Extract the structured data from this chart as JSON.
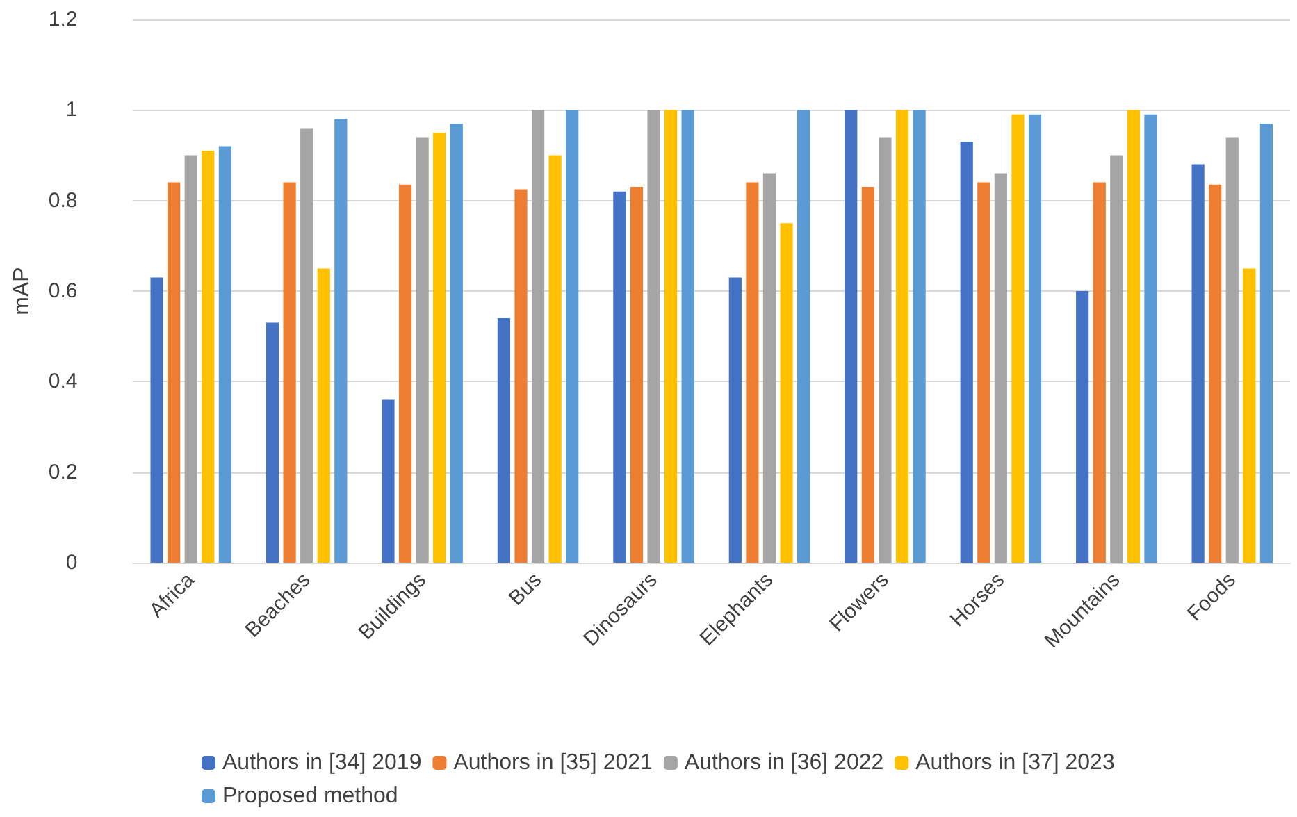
{
  "chart_data": {
    "type": "bar",
    "ylabel": "mAP",
    "categories": [
      "Africa",
      "Beaches",
      "Buildings",
      "Bus",
      "Dinosaurs",
      "Elephants",
      "Flowers",
      "Horses",
      "Mountains",
      "Foods"
    ],
    "series": [
      {
        "name": "Authors in [34] 2019",
        "color": "#4472c4",
        "values": [
          0.63,
          0.53,
          0.36,
          0.54,
          0.82,
          0.63,
          1.0,
          0.93,
          0.6,
          0.88
        ]
      },
      {
        "name": "Authors in [35] 2021",
        "color": "#ed7d31",
        "values": [
          0.84,
          0.84,
          0.835,
          0.825,
          0.83,
          0.84,
          0.83,
          0.84,
          0.84,
          0.835
        ]
      },
      {
        "name": "Authors in [36] 2022",
        "color": "#a5a5a5",
        "values": [
          0.9,
          0.96,
          0.94,
          1.0,
          1.0,
          0.86,
          0.94,
          0.86,
          0.9,
          0.94
        ]
      },
      {
        "name": "Authors in [37] 2023",
        "color": "#ffc000",
        "values": [
          0.91,
          0.65,
          0.95,
          0.9,
          1.0,
          0.75,
          1.0,
          0.99,
          1.0,
          0.65
        ]
      },
      {
        "name": "Proposed method",
        "color": "#5b9bd5",
        "values": [
          0.92,
          0.98,
          0.97,
          1.0,
          1.0,
          1.0,
          1.0,
          0.99,
          0.99,
          0.97
        ]
      }
    ],
    "ylim": [
      0,
      1.2
    ],
    "yticks": [
      0,
      0.2,
      0.4,
      0.6,
      0.8,
      1,
      1.2
    ],
    "grid": "y",
    "legend": "bottom"
  }
}
